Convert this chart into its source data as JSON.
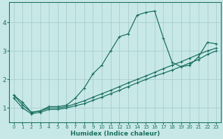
{
  "xlabel": "Humidex (Indice chaleur)",
  "ylabel": "",
  "bg_color": "#c8e8e8",
  "grid_color": "#a8cccc",
  "line_color": "#1a7060",
  "xlim": [
    -0.5,
    23.5
  ],
  "ylim": [
    0.5,
    4.7
  ],
  "xticks": [
    0,
    1,
    2,
    3,
    4,
    5,
    6,
    7,
    8,
    9,
    10,
    11,
    12,
    13,
    14,
    15,
    16,
    17,
    18,
    19,
    20,
    21,
    22,
    23
  ],
  "yticks": [
    1,
    2,
    3,
    4
  ],
  "line1_x": [
    0,
    1,
    2,
    3,
    4,
    5,
    6,
    7,
    8,
    9,
    10,
    11,
    12,
    13,
    14,
    15,
    16,
    17,
    18,
    19,
    20,
    21,
    22,
    23
  ],
  "line1_y": [
    1.45,
    1.2,
    0.85,
    0.9,
    1.05,
    1.05,
    1.1,
    1.35,
    1.7,
    2.2,
    2.5,
    3.0,
    3.5,
    3.6,
    4.25,
    4.35,
    4.4,
    3.45,
    2.6,
    2.45,
    2.5,
    2.8,
    3.3,
    3.25
  ],
  "line2_x": [
    0,
    1,
    2,
    3,
    4,
    5,
    6,
    7,
    8,
    9,
    10,
    11,
    12,
    13,
    14,
    15,
    16,
    17,
    18,
    19,
    20,
    21,
    22,
    23
  ],
  "line2_y": [
    1.45,
    1.1,
    0.85,
    0.9,
    1.0,
    1.0,
    1.05,
    1.15,
    1.25,
    1.38,
    1.5,
    1.62,
    1.75,
    1.88,
    2.0,
    2.12,
    2.25,
    2.38,
    2.5,
    2.62,
    2.75,
    2.88,
    3.0,
    3.1
  ],
  "line3_x": [
    0,
    1,
    2,
    3,
    4,
    5,
    6,
    7,
    8,
    9,
    10,
    11,
    12,
    13,
    14,
    15,
    16,
    17,
    18,
    19,
    20,
    21,
    22,
    23
  ],
  "line3_y": [
    1.35,
    1.0,
    0.8,
    0.85,
    0.95,
    0.95,
    1.0,
    1.08,
    1.15,
    1.27,
    1.38,
    1.5,
    1.62,
    1.75,
    1.88,
    2.0,
    2.12,
    2.22,
    2.33,
    2.45,
    2.58,
    2.7,
    2.88,
    3.0
  ]
}
